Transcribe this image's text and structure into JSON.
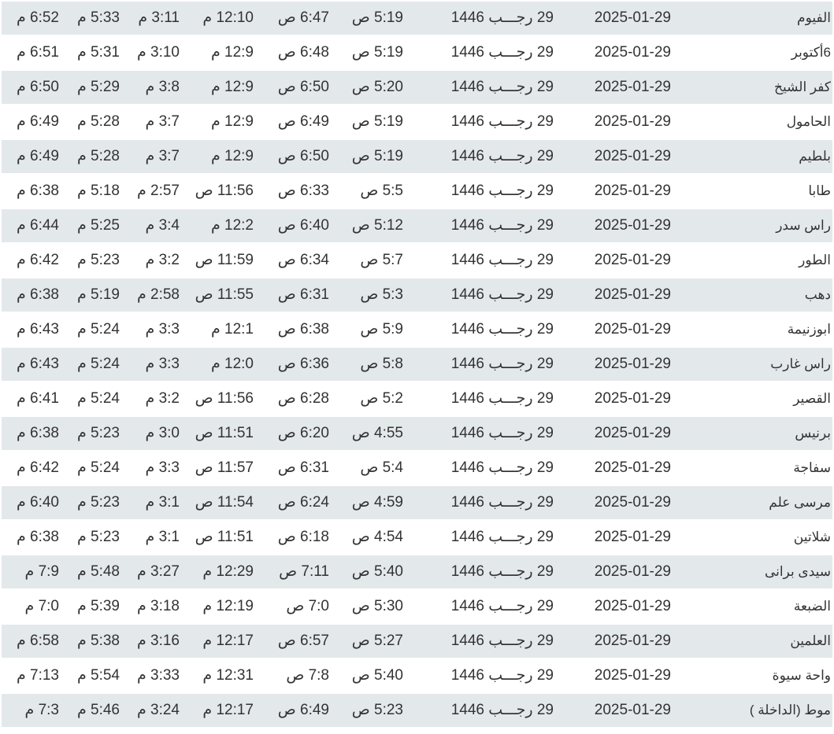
{
  "colors": {
    "row_alt": "#e3e8eb",
    "text": "#333333"
  },
  "rows": [
    [
      "الفيوم",
      "2025-01-29",
      "29 رجـــب 1446",
      "5:19 ص",
      "6:47 ص",
      "12:10 م",
      "3:11 م",
      "5:33 م",
      "6:52 م"
    ],
    [
      "6أكتوبر",
      "2025-01-29",
      "29 رجـــب 1446",
      "5:19 ص",
      "6:48 ص",
      "12:9 م",
      "3:10 م",
      "5:31 م",
      "6:51 م"
    ],
    [
      "كفر الشيخ",
      "2025-01-29",
      "29 رجـــب 1446",
      "5:20 ص",
      "6:50 ص",
      "12:9 م",
      "3:8 م",
      "5:29 م",
      "6:50 م"
    ],
    [
      "الحامول",
      "2025-01-29",
      "29 رجـــب 1446",
      "5:19 ص",
      "6:49 ص",
      "12:9 م",
      "3:7 م",
      "5:28 م",
      "6:49 م"
    ],
    [
      "بلطيم",
      "2025-01-29",
      "29 رجـــب 1446",
      "5:19 ص",
      "6:50 ص",
      "12:9 م",
      "3:7 م",
      "5:28 م",
      "6:49 م"
    ],
    [
      "طابا",
      "2025-01-29",
      "29 رجـــب 1446",
      "5:5 ص",
      "6:33 ص",
      "11:56 ص",
      "2:57 م",
      "5:18 م",
      "6:38 م"
    ],
    [
      "راس سدر",
      "2025-01-29",
      "29 رجـــب 1446",
      "5:12 ص",
      "6:40 ص",
      "12:2 م",
      "3:4 م",
      "5:25 م",
      "6:44 م"
    ],
    [
      "الطور",
      "2025-01-29",
      "29 رجـــب 1446",
      "5:7 ص",
      "6:34 ص",
      "11:59 ص",
      "3:2 م",
      "5:23 م",
      "6:42 م"
    ],
    [
      "دهب",
      "2025-01-29",
      "29 رجـــب 1446",
      "5:3 ص",
      "6:31 ص",
      "11:55 ص",
      "2:58 م",
      "5:19 م",
      "6:38 م"
    ],
    [
      "ابوزنيمة",
      "2025-01-29",
      "29 رجـــب 1446",
      "5:9 ص",
      "6:38 ص",
      "12:1 م",
      "3:3 م",
      "5:24 م",
      "6:43 م"
    ],
    [
      "راس غارب",
      "2025-01-29",
      "29 رجـــب 1446",
      "5:8 ص",
      "6:36 ص",
      "12:0 م",
      "3:3 م",
      "5:24 م",
      "6:43 م"
    ],
    [
      "القصير",
      "2025-01-29",
      "29 رجـــب 1446",
      "5:2 ص",
      "6:28 ص",
      "11:56 ص",
      "3:2 م",
      "5:24 م",
      "6:41 م"
    ],
    [
      "برنيس",
      "2025-01-29",
      "29 رجـــب 1446",
      "4:55 ص",
      "6:20 ص",
      "11:51 ص",
      "3:0 م",
      "5:23 م",
      "6:38 م"
    ],
    [
      "سفاجة",
      "2025-01-29",
      "29 رجـــب 1446",
      "5:4 ص",
      "6:31 ص",
      "11:57 ص",
      "3:3 م",
      "5:24 م",
      "6:42 م"
    ],
    [
      "مرسى علم",
      "2025-01-29",
      "29 رجـــب 1446",
      "4:59 ص",
      "6:24 ص",
      "11:54 ص",
      "3:1 م",
      "5:23 م",
      "6:40 م"
    ],
    [
      "شلاتين",
      "2025-01-29",
      "29 رجـــب 1446",
      "4:54 ص",
      "6:18 ص",
      "11:51 ص",
      "3:1 م",
      "5:23 م",
      "6:38 م"
    ],
    [
      "سيدى برانى",
      "2025-01-29",
      "29 رجـــب 1446",
      "5:40 ص",
      "7:11 ص",
      "12:29 م",
      "3:27 م",
      "5:48 م",
      "7:9 م"
    ],
    [
      "الضبعة",
      "2025-01-29",
      "29 رجـــب 1446",
      "5:30 ص",
      "7:0 ص",
      "12:19 م",
      "3:18 م",
      "5:39 م",
      "7:0 م"
    ],
    [
      "العلمين",
      "2025-01-29",
      "29 رجـــب 1446",
      "5:27 ص",
      "6:57 ص",
      "12:17 م",
      "3:16 م",
      "5:38 م",
      "6:58 م"
    ],
    [
      "واحة سيوة",
      "2025-01-29",
      "29 رجـــب 1446",
      "5:40 ص",
      "7:8 ص",
      "12:31 م",
      "3:33 م",
      "5:54 م",
      "7:13 م"
    ],
    [
      "موط (الداخلة )",
      "2025-01-29",
      "29 رجـــب 1446",
      "5:23 ص",
      "6:49 ص",
      "12:17 م",
      "3:24 م",
      "5:46 م",
      "7:3 م"
    ]
  ]
}
